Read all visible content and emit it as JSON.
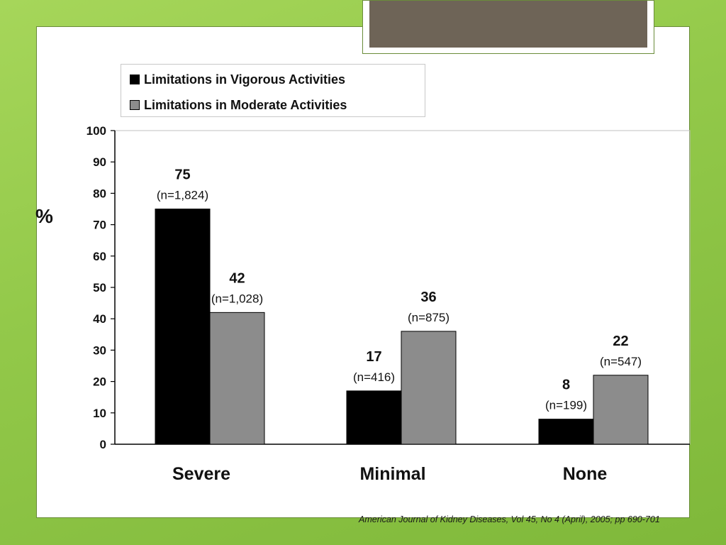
{
  "source_note": "American Journal of Kidney Diseases, Vol 45, No 4 (April), 2005; pp 690-701",
  "colors": {
    "series_dark": "#000000",
    "series_gray": "#8c8c8c"
  },
  "chart_data": {
    "type": "bar",
    "ylabel": "%",
    "xlabel": "",
    "ylim": [
      0,
      100
    ],
    "yticks": [
      0,
      10,
      20,
      30,
      40,
      50,
      60,
      70,
      80,
      90,
      100
    ],
    "grid": false,
    "legend_position": "top-left",
    "categories": [
      "Severe",
      "Minimal",
      "None"
    ],
    "series": [
      {
        "name": "Limitations in Vigorous Activities",
        "values": [
          75,
          17,
          8
        ],
        "counts": [
          "(n=1,824)",
          "(n=416)",
          "(n=199)"
        ]
      },
      {
        "name": "Limitations in Moderate Activities",
        "values": [
          42,
          36,
          22
        ],
        "counts": [
          "(n=1,028)",
          "(n=875)",
          "(n=547)"
        ]
      }
    ]
  }
}
